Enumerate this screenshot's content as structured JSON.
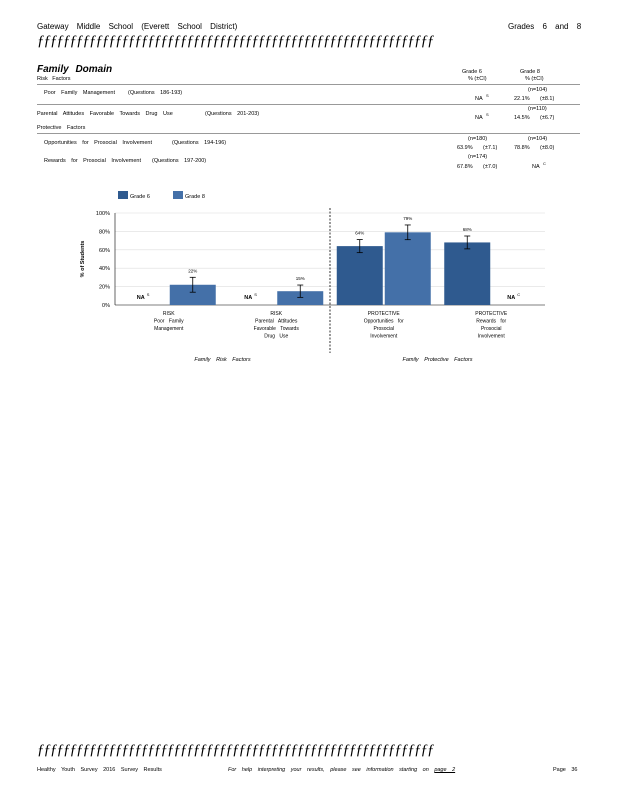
{
  "header": {
    "school": "Gateway Middle School (Everett School District)",
    "grades": "Grades 6 and 8",
    "rule": "ƒƒƒƒƒƒƒƒƒƒƒƒƒƒƒƒƒƒƒƒƒƒƒƒƒƒƒƒƒƒƒƒƒƒƒƒƒƒƒƒƒƒƒƒƒƒƒƒƒƒƒƒƒƒƒƒƒƒƒƒƒ"
  },
  "domain": {
    "title": "Family Domain",
    "risk_heading": "Risk Factors",
    "protective_heading": "Protective Factors",
    "col_g6": "Grade 6",
    "col_g8": "Grade 8",
    "col_g6_sub": "% (±CI)",
    "col_g8_sub": "% (±CI)",
    "rows": [
      {
        "label": "Poor Family Management",
        "questions": "(Questions 186-193)",
        "n6": "",
        "g6": "NA",
        "g6_ci": "",
        "g6_fn": "S",
        "n8": "(n=104)",
        "g8": "22.1%",
        "g8_ci": "(±8.1)",
        "g8_fn": ""
      },
      {
        "label": "Parental Attitudes Favorable Towards Drug Use",
        "questions": "(Questions 201-203)",
        "n6": "",
        "g6": "NA",
        "g6_ci": "",
        "g6_fn": "S",
        "n8": "(n=110)",
        "g8": "14.5%",
        "g8_ci": "(±6.7)",
        "g8_fn": ""
      },
      {
        "label": "Opportunities for Prosocial Involvement",
        "questions": "(Questions 194-196)",
        "n6": "(n=180)",
        "g6": "63.9%",
        "g6_ci": "(±7.1)",
        "g6_fn": "",
        "n8": "(n=104)",
        "g8": "78.8%",
        "g8_ci": "(±8.0)",
        "g8_fn": ""
      },
      {
        "label": "Rewards for Prosocial Involvement",
        "questions": "(Questions 197-200)",
        "n6": "(n=174)",
        "g6": "67.8%",
        "g6_ci": "(±7.0)",
        "g6_fn": "",
        "n8": "",
        "g8": "NA",
        "g8_ci": "",
        "g8_fn": "C"
      }
    ]
  },
  "chart_data": {
    "type": "bar",
    "ylabel": "% of Students",
    "ylim": [
      0,
      100
    ],
    "yticks": [
      "0%",
      "20%",
      "40%",
      "60%",
      "80%",
      "100%"
    ],
    "categories": [
      "RISK Poor Family Management",
      "RISK Parental Attitudes Favorable Towards Drug Use",
      "PROTECTIVE Opportunities for Prosocial Involvement",
      "PROTECTIVE Rewards for Prosocial Involvement"
    ],
    "category_lines": [
      [
        "RISK",
        "Poor Family",
        "Management"
      ],
      [
        "RISK",
        "Parental Attitudes",
        "Favorable Towards",
        "Drug Use"
      ],
      [
        "PROTECTIVE",
        "Opportunities for",
        "Prosocial",
        "Involvement"
      ],
      [
        "PROTECTIVE",
        "Rewards for",
        "Prosocial",
        "Involvement"
      ]
    ],
    "series": [
      {
        "name": "Grade 6",
        "color": "#2f5a8f",
        "values": [
          null,
          null,
          64,
          68
        ],
        "ci": [
          null,
          null,
          7.1,
          7.0
        ],
        "labels": [
          "NA",
          "NA",
          "64%",
          "68%"
        ],
        "notes": [
          "S",
          "S",
          "",
          ""
        ]
      },
      {
        "name": "Grade 8",
        "color": "#4470a8",
        "values": [
          22,
          15,
          79,
          null
        ],
        "ci": [
          8.1,
          6.7,
          8.0,
          null
        ],
        "labels": [
          "22%",
          "15%",
          "79%",
          "NA"
        ],
        "notes": [
          "",
          "",
          "",
          "C"
        ]
      }
    ],
    "group_labels": [
      "Family Risk Factors",
      "Family Protective Factors"
    ],
    "legend_position": "top-left",
    "grid": true
  },
  "footer": {
    "left": "Healthy Youth Survey 2016 Survey Results",
    "center_prefix": "For help interpreting your results, please see information starting on",
    "center_link": "page 2",
    "page": "Page 36"
  }
}
